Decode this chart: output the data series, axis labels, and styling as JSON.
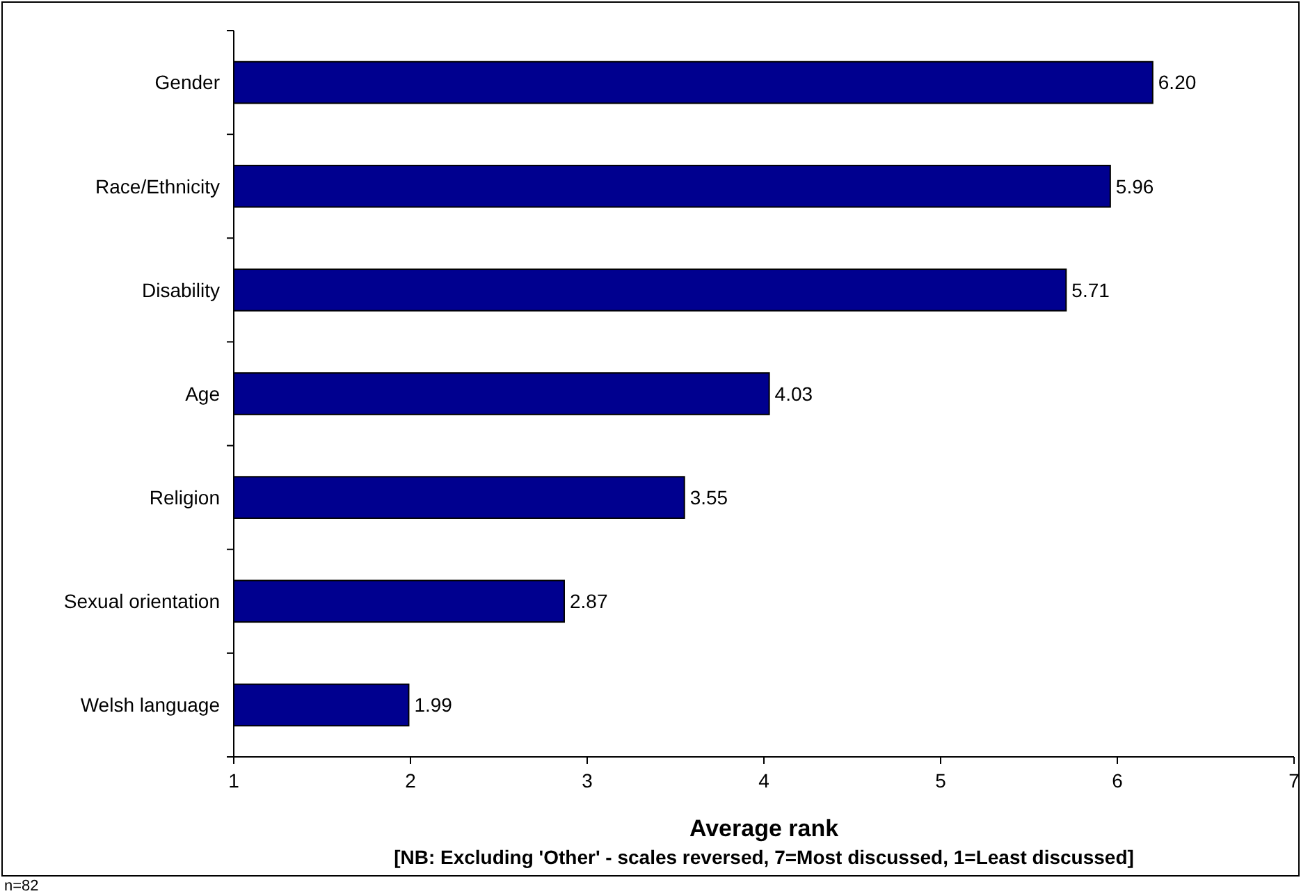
{
  "chart_data": {
    "type": "bar",
    "orientation": "horizontal",
    "xlabel": "Average rank",
    "categories": [
      "Gender",
      "Race/Ethnicity",
      "Disability",
      "Age",
      "Religion",
      "Sexual orientation",
      "Welsh language"
    ],
    "values": [
      6.2,
      5.96,
      5.71,
      4.03,
      3.55,
      2.87,
      1.99
    ],
    "value_labels": [
      "6.20",
      "5.96",
      "5.71",
      "4.03",
      "3.55",
      "2.87",
      "1.99"
    ],
    "color": "#00008f",
    "xlim": [
      1,
      7
    ],
    "xticks": [
      1,
      2,
      3,
      4,
      5,
      6,
      7
    ],
    "grid": false,
    "annotations": [
      "[NB: Excluding 'Other' - scales reversed, 7=Most discussed, 1=Least discussed]",
      "n=82"
    ]
  }
}
